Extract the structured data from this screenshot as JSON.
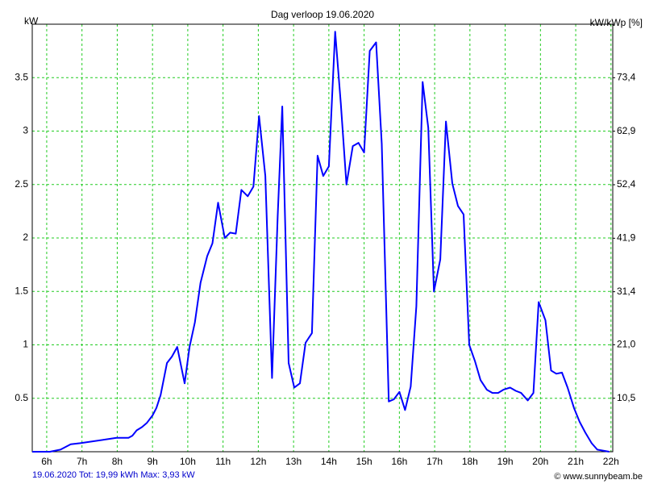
{
  "chart_data": {
    "type": "line",
    "title": "Dag  verloop 19.06.2020",
    "y_label": "kW",
    "y2_label": "kW/kWp [%]",
    "footer": "19.06.2020 Tot: 19,99 kWh Max: 3,93 kW",
    "credit": "© www.sunnybeam.be",
    "color": "#0000ff",
    "grid": true,
    "x": [
      5.59,
      6.09,
      6.39,
      6.68,
      6.95,
      7.98,
      8.32,
      8.43,
      8.55,
      8.7,
      8.84,
      9.0,
      9.11,
      9.23,
      9.41,
      9.55,
      9.7,
      9.91,
      10.05,
      10.2,
      10.36,
      10.55,
      10.7,
      10.86,
      11.05,
      11.2,
      11.36,
      11.52,
      11.7,
      11.86,
      12.02,
      12.2,
      12.39,
      12.55,
      12.68,
      12.86,
      13.02,
      13.18,
      13.34,
      13.52,
      13.68,
      13.84,
      14.0,
      14.18,
      14.34,
      14.5,
      14.68,
      14.84,
      15.0,
      15.16,
      15.34,
      15.5,
      15.7,
      15.84,
      16.0,
      16.16,
      16.32,
      16.48,
      16.66,
      16.82,
      16.98,
      17.16,
      17.32,
      17.5,
      17.66,
      17.82,
      17.98,
      18.14,
      18.3,
      18.48,
      18.64,
      18.8,
      18.95,
      19.14,
      19.3,
      19.45,
      19.64,
      19.8,
      19.95,
      20.14,
      20.3,
      20.45,
      20.61,
      20.77,
      20.95,
      21.11,
      21.27,
      21.45,
      21.61,
      21.95
    ],
    "values": [
      0,
      0,
      0.02,
      0.07,
      0.08,
      0.13,
      0.13,
      0.15,
      0.2,
      0.23,
      0.27,
      0.34,
      0.41,
      0.53,
      0.83,
      0.89,
      0.98,
      0.64,
      0.98,
      1.21,
      1.58,
      1.83,
      1.95,
      2.33,
      2.0,
      2.05,
      2.04,
      2.45,
      2.39,
      2.48,
      3.14,
      2.58,
      0.69,
      2.2,
      3.23,
      0.83,
      0.6,
      0.64,
      1.02,
      1.11,
      2.77,
      2.58,
      2.67,
      3.93,
      3.26,
      2.5,
      2.86,
      2.89,
      2.8,
      3.75,
      3.83,
      2.88,
      0.47,
      0.49,
      0.56,
      0.39,
      0.61,
      1.36,
      3.46,
      3.03,
      1.5,
      1.8,
      3.09,
      2.51,
      2.3,
      2.22,
      1.0,
      0.85,
      0.67,
      0.58,
      0.55,
      0.55,
      0.58,
      0.6,
      0.57,
      0.55,
      0.48,
      0.55,
      1.4,
      1.23,
      0.76,
      0.73,
      0.74,
      0.6,
      0.41,
      0.28,
      0.18,
      0.08,
      0.02,
      0
    ],
    "xlim": [
      5.59,
      22.05
    ],
    "xticks": [
      {
        "value": 6,
        "label": "6h"
      },
      {
        "value": 7,
        "label": "7h"
      },
      {
        "value": 8,
        "label": "8h"
      },
      {
        "value": 9,
        "label": "9h"
      },
      {
        "value": 10,
        "label": "10h"
      },
      {
        "value": 11,
        "label": "11h"
      },
      {
        "value": 12,
        "label": "12h"
      },
      {
        "value": 13,
        "label": "13h"
      },
      {
        "value": 14,
        "label": "14h"
      },
      {
        "value": 15,
        "label": "15h"
      },
      {
        "value": 16,
        "label": "16h"
      },
      {
        "value": 17,
        "label": "17h"
      },
      {
        "value": 18,
        "label": "18h"
      },
      {
        "value": 19,
        "label": "19h"
      },
      {
        "value": 20,
        "label": "20h"
      },
      {
        "value": 21,
        "label": "21h"
      },
      {
        "value": 22,
        "label": "22h"
      }
    ],
    "ylim": [
      0,
      4
    ],
    "yticks": [
      0.5,
      1,
      1.5,
      2,
      2.5,
      3,
      3.5
    ],
    "y2lim": [
      0,
      83.9
    ],
    "y2ticks": [
      {
        "value": 10.5,
        "label": "10,5"
      },
      {
        "value": 21,
        "label": "21,0"
      },
      {
        "value": 31.4,
        "label": "31,4"
      },
      {
        "value": 41.9,
        "label": "41,9"
      },
      {
        "value": 52.4,
        "label": "52,4"
      },
      {
        "value": 62.9,
        "label": "62,9"
      },
      {
        "value": 73.4,
        "label": "73,4"
      }
    ]
  }
}
